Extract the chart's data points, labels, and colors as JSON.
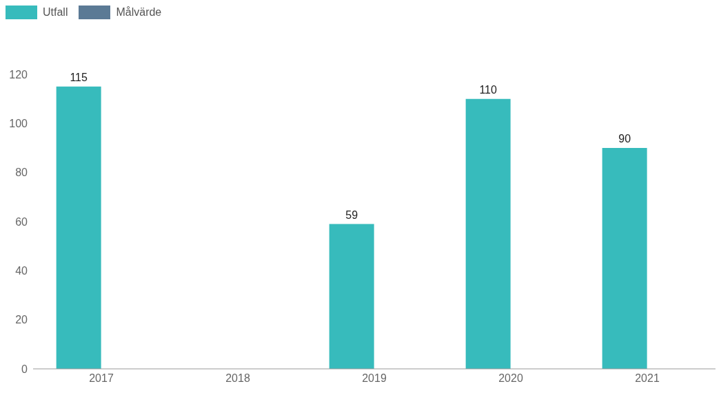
{
  "chart_data": {
    "type": "bar",
    "categories": [
      "2017",
      "2018",
      "2019",
      "2020",
      "2021"
    ],
    "series": [
      {
        "name": "Utfall",
        "color": "#37bbbc",
        "values": [
          115,
          null,
          59,
          110,
          90
        ]
      },
      {
        "name": "Målvärde",
        "color": "#5b7a95",
        "values": [
          null,
          null,
          null,
          null,
          null
        ]
      }
    ],
    "ylim": [
      0,
      120
    ],
    "yticks": [
      0,
      20,
      40,
      60,
      80,
      100,
      120
    ],
    "grid": false,
    "legend": "top left",
    "data_labels": true
  }
}
